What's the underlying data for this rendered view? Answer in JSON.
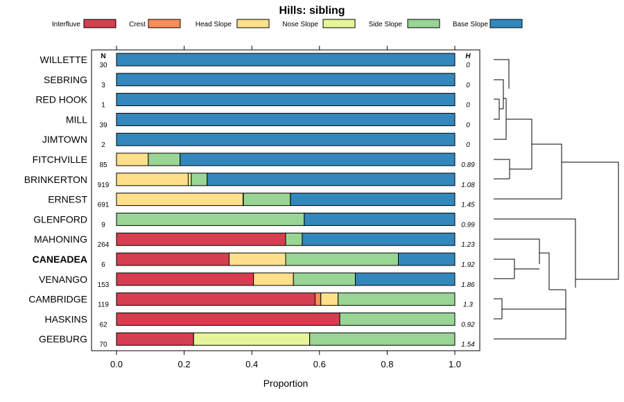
{
  "chart_data": {
    "type": "bar",
    "stacked": true,
    "orientation": "horizontal",
    "title": "Hills: sibling",
    "xlabel": "Proportion",
    "xlim": [
      0,
      1
    ],
    "x_ticks": [
      "0.0",
      "0.2",
      "0.4",
      "0.6",
      "0.8",
      "1.0"
    ],
    "n_header": "N",
    "h_header": "H",
    "legend_position": "top",
    "legend": [
      {
        "name": "Interfluve",
        "color": "#D53E4F"
      },
      {
        "name": "Crest",
        "color": "#FC8D59"
      },
      {
        "name": "Head Slope",
        "color": "#FEE08B"
      },
      {
        "name": "Nose Slope",
        "color": "#E6F598"
      },
      {
        "name": "Side Slope",
        "color": "#99D594"
      },
      {
        "name": "Base Slope",
        "color": "#3288BD"
      }
    ],
    "highlighted_category": "CANEADEA",
    "categories": [
      "WILLETTE",
      "SEBRING",
      "RED HOOK",
      "MILL",
      "JIMTOWN",
      "FITCHVILLE",
      "BRINKERTON",
      "ERNEST",
      "GLENFORD",
      "MAHONING",
      "CANEADEA",
      "VENANGO",
      "CAMBRIDGE",
      "HASKINS",
      "GEEBURG"
    ],
    "n": [
      "30",
      "3",
      "1",
      "39",
      "2",
      "85",
      "919",
      "691",
      "9",
      "264",
      "6",
      "153",
      "119",
      "62",
      "70"
    ],
    "h": [
      "0",
      "0",
      "0",
      "0",
      "0",
      "0.89",
      "1.08",
      "1.45",
      "0.99",
      "1.23",
      "1.92",
      "1.86",
      "1.3",
      "0.92",
      "1.54"
    ],
    "series": [
      {
        "name": "Interfluve",
        "values": [
          0,
          0,
          0,
          0,
          0,
          0,
          0,
          0,
          0,
          0.5,
          0.333,
          0.405,
          0.587,
          0.66,
          0.228
        ]
      },
      {
        "name": "Crest",
        "values": [
          0,
          0,
          0,
          0,
          0,
          0,
          0,
          0,
          0,
          0,
          0,
          0,
          0.017,
          0,
          0
        ]
      },
      {
        "name": "Head Slope",
        "values": [
          0,
          0,
          0,
          0,
          0,
          0.094,
          0.212,
          0.374,
          0,
          0,
          0.167,
          0.118,
          0.051,
          0,
          0
        ]
      },
      {
        "name": "Nose Slope",
        "values": [
          0,
          0,
          0,
          0,
          0,
          0,
          0.009,
          0.001,
          0,
          0,
          0,
          0,
          0,
          0,
          0.343
        ]
      },
      {
        "name": "Side Slope",
        "values": [
          0,
          0,
          0,
          0,
          0,
          0.094,
          0.047,
          0.139,
          0.555,
          0.049,
          0.333,
          0.183,
          0.345,
          0.34,
          0.429
        ]
      },
      {
        "name": "Base Slope",
        "values": [
          1,
          1,
          1,
          1,
          1,
          0.812,
          0.732,
          0.486,
          0.445,
          0.451,
          0.167,
          0.294,
          0,
          0,
          0
        ]
      }
    ]
  }
}
